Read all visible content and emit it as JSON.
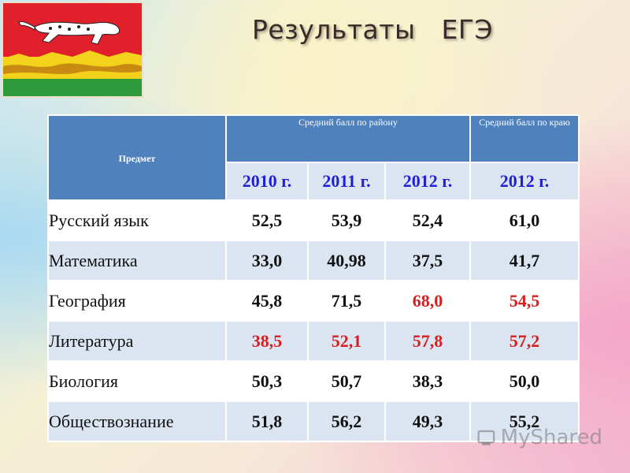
{
  "title": "Результаты   ЕГЭ",
  "table": {
    "header": {
      "subject": "Предмет",
      "district": "Средний балл по району",
      "region": "Средний балл по краю",
      "years": [
        "2010 г.",
        "2011 г.",
        "2012 г.",
        "2012 г."
      ]
    },
    "rows": [
      {
        "subject": "Русский язык",
        "v2010": "52,5",
        "v2011": "53,9",
        "v2012": "52,4",
        "region2012": "61,0"
      },
      {
        "subject": "Математика",
        "v2010": "33,0",
        "v2011": "40,98",
        "v2012": "37,5",
        "region2012": "41,7"
      },
      {
        "subject": "География",
        "v2010": "45,8",
        "v2011": "71,5",
        "v2012": "68,0",
        "region2012": "54,5"
      },
      {
        "subject": "Литература",
        "v2010": "38,5",
        "v2011": "52,1",
        "v2012": "57,8",
        "region2012": "57,2"
      },
      {
        "subject": "Биология",
        "v2010": "50,3",
        "v2011": "50,7",
        "v2012": "38,3",
        "region2012": "50,0"
      },
      {
        "subject": "Обществознание",
        "v2010": "51,8",
        "v2011": "56,2",
        "v2012": "49,3",
        "region2012": "55,2"
      }
    ]
  },
  "watermark": "MyShared",
  "colors": {
    "header_bg": "#4f81bd",
    "highlight": "#d42020",
    "year_text": "#1f1fd6"
  }
}
